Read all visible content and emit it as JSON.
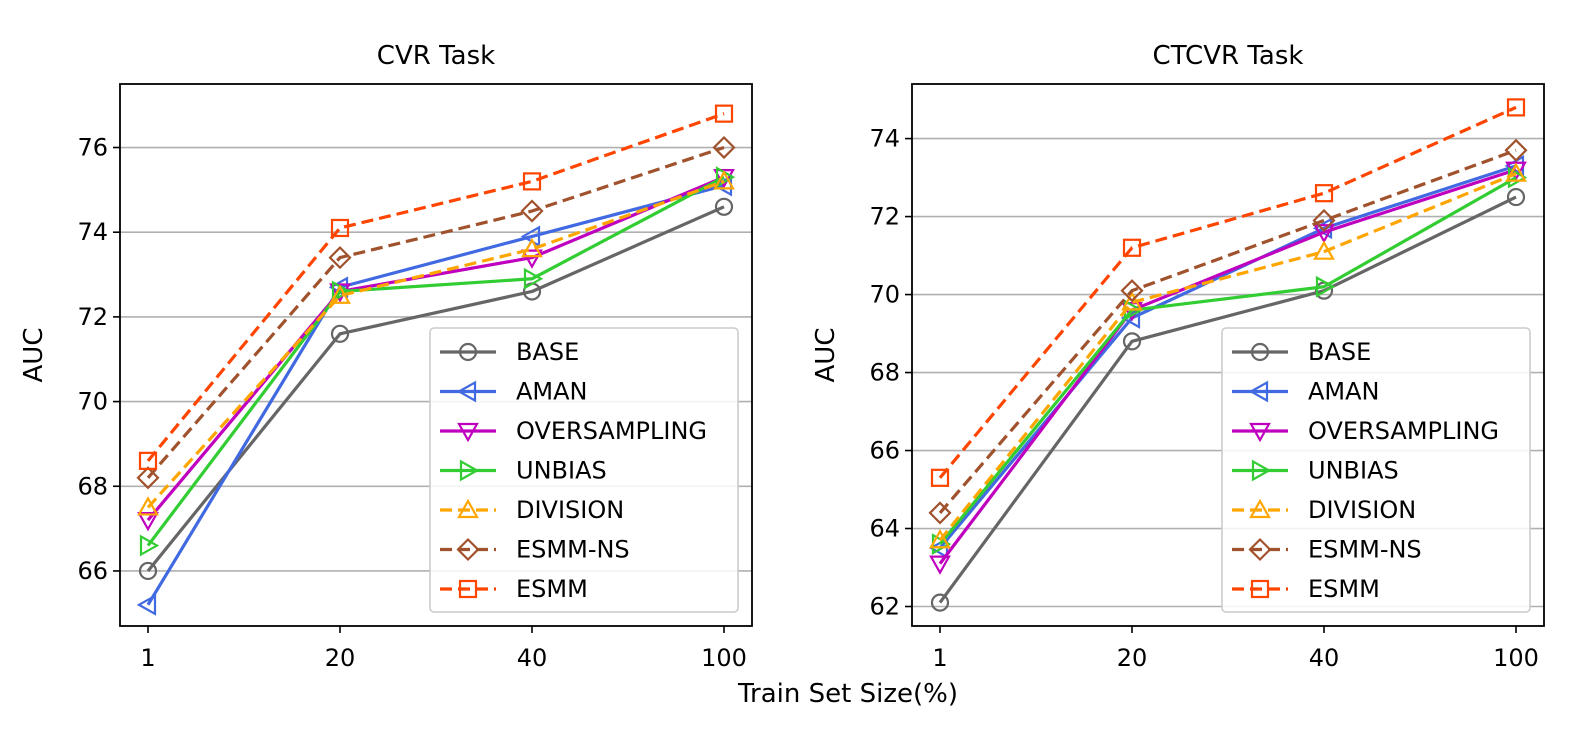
{
  "figure": {
    "xlabel": "Train Set Size(%)"
  },
  "chart_data": [
    {
      "type": "line",
      "title": "CVR Task",
      "xlabel": "Train Set Size(%)",
      "ylabel": "AUC",
      "categories": [
        "1",
        "20",
        "40",
        "100"
      ],
      "ylim": [
        64.7,
        77.5
      ],
      "yticks": [
        66,
        68,
        70,
        72,
        74,
        76
      ],
      "grid": "horizontal",
      "legend": "lower-right",
      "series": [
        {
          "name": "BASE",
          "marker": "circle",
          "dashed": false,
          "color": "#666666",
          "values": [
            66.0,
            71.6,
            72.6,
            74.6
          ]
        },
        {
          "name": "AMAN",
          "marker": "triangle-left",
          "dashed": false,
          "color": "#4169e1",
          "values": [
            65.2,
            72.7,
            73.9,
            75.1
          ]
        },
        {
          "name": "OVERSAMPLING",
          "marker": "triangle-down",
          "dashed": false,
          "color": "#bf00bf",
          "values": [
            67.2,
            72.6,
            73.4,
            75.3
          ]
        },
        {
          "name": "UNBIAS",
          "marker": "triangle-right",
          "dashed": false,
          "color": "#32cd32",
          "values": [
            66.6,
            72.6,
            72.9,
            75.3
          ]
        },
        {
          "name": "DIVISION",
          "marker": "triangle-up",
          "dashed": true,
          "color": "#ffa500",
          "values": [
            67.5,
            72.5,
            73.6,
            75.2
          ]
        },
        {
          "name": "ESMM-NS",
          "marker": "diamond",
          "dashed": true,
          "color": "#a0522d",
          "values": [
            68.2,
            73.4,
            74.5,
            76.0
          ]
        },
        {
          "name": "ESMM",
          "marker": "square",
          "dashed": true,
          "color": "#ff4500",
          "values": [
            68.6,
            74.1,
            75.2,
            76.8
          ]
        }
      ]
    },
    {
      "type": "line",
      "title": "CTCVR Task",
      "xlabel": "Train Set Size(%)",
      "ylabel": "AUC",
      "categories": [
        "1",
        "20",
        "40",
        "100"
      ],
      "ylim": [
        61.5,
        75.4
      ],
      "yticks": [
        62,
        64,
        66,
        68,
        70,
        72,
        74
      ],
      "grid": "horizontal",
      "legend": "lower-right",
      "series": [
        {
          "name": "BASE",
          "marker": "circle",
          "dashed": false,
          "color": "#666666",
          "values": [
            62.1,
            68.8,
            70.1,
            72.5
          ]
        },
        {
          "name": "AMAN",
          "marker": "triangle-left",
          "dashed": false,
          "color": "#4169e1",
          "values": [
            63.5,
            69.4,
            71.7,
            73.3
          ]
        },
        {
          "name": "OVERSAMPLING",
          "marker": "triangle-down",
          "dashed": false,
          "color": "#bf00bf",
          "values": [
            63.1,
            69.6,
            71.6,
            73.2
          ]
        },
        {
          "name": "UNBIAS",
          "marker": "triangle-right",
          "dashed": false,
          "color": "#32cd32",
          "values": [
            63.6,
            69.6,
            70.2,
            73.0
          ]
        },
        {
          "name": "DIVISION",
          "marker": "triangle-up",
          "dashed": true,
          "color": "#ffa500",
          "values": [
            63.7,
            69.8,
            71.1,
            73.1
          ]
        },
        {
          "name": "ESMM-NS",
          "marker": "diamond",
          "dashed": true,
          "color": "#a0522d",
          "values": [
            64.4,
            70.1,
            71.9,
            73.7
          ]
        },
        {
          "name": "ESMM",
          "marker": "square",
          "dashed": true,
          "color": "#ff4500",
          "values": [
            65.3,
            71.2,
            72.6,
            74.8
          ]
        }
      ]
    }
  ]
}
